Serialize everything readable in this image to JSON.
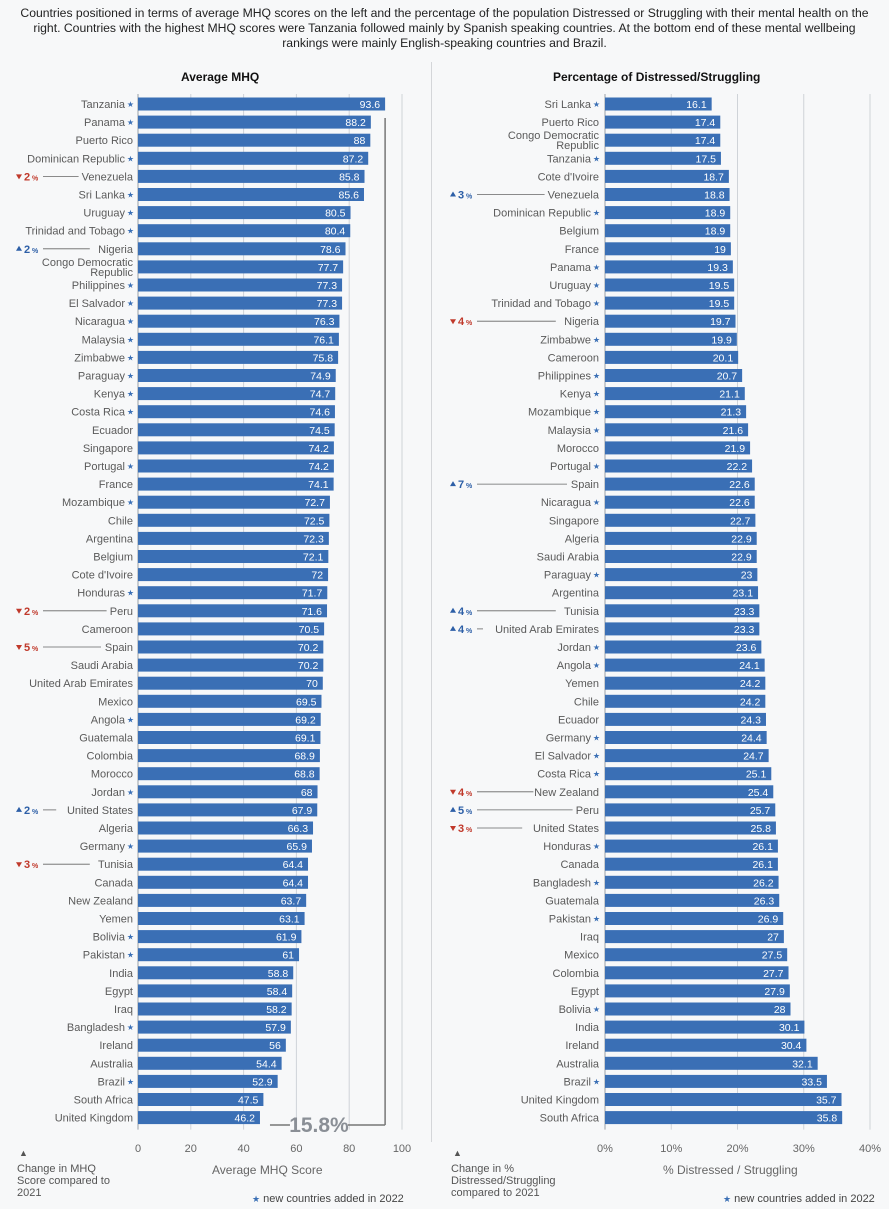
{
  "intro": "Countries positioned in terms of average MHQ scores on the left and the percentage of the population Distressed or Struggling with their mental health on the right.  Countries with the highest MHQ scores were Tanzania followed mainly by Spanish speaking countries. At the bottom end of these mental wellbeing rankings were mainly English-speaking countries and Brazil.",
  "colors": {
    "bar": "#3a6fb5",
    "up": "#2d5fa7",
    "down": "#c0392b",
    "grid": "#cfd3d8"
  },
  "footnotes": {
    "triangle": "▲",
    "left_change_note": "Change in MHQ Score compared to 2021",
    "right_change_note": "Change in % Distressed/Struggling compared to 2021",
    "new_countries": "new countries added in 2022",
    "star": "★"
  },
  "chart_data": [
    {
      "type": "bar",
      "orientation": "horizontal",
      "title": "Average MHQ",
      "xlabel": "Average MHQ Score",
      "xlim": [
        0,
        100
      ],
      "xticks": [
        "0",
        "20",
        "40",
        "60",
        "80",
        "100"
      ],
      "gap_annotation": "15.8%",
      "rows": [
        {
          "name": "Tanzania",
          "value": 93.6,
          "new": true
        },
        {
          "name": "Panama",
          "value": 88.2,
          "new": true
        },
        {
          "name": "Puerto Rico",
          "value": 88
        },
        {
          "name": "Dominican Republic",
          "value": 87.2,
          "new": true
        },
        {
          "name": "Venezuela",
          "value": 85.8,
          "change": "2",
          "dir": "down"
        },
        {
          "name": "Sri Lanka",
          "value": 85.6,
          "new": true
        },
        {
          "name": "Uruguay",
          "value": 80.5,
          "new": true
        },
        {
          "name": "Trinidad and Tobago",
          "value": 80.4,
          "new": true
        },
        {
          "name": "Nigeria",
          "value": 78.6,
          "change": "2",
          "dir": "up"
        },
        {
          "name": "Congo Democratic Republic",
          "value": 77.7
        },
        {
          "name": "Philippines",
          "value": 77.3,
          "new": true
        },
        {
          "name": "El Salvador",
          "value": 77.3,
          "new": true
        },
        {
          "name": "Nicaragua",
          "value": 76.3,
          "new": true
        },
        {
          "name": "Malaysia",
          "value": 76.1,
          "new": true
        },
        {
          "name": "Zimbabwe",
          "value": 75.8,
          "new": true
        },
        {
          "name": "Paraguay",
          "value": 74.9,
          "new": true
        },
        {
          "name": "Kenya",
          "value": 74.7,
          "new": true
        },
        {
          "name": "Costa Rica",
          "value": 74.6,
          "new": true
        },
        {
          "name": "Ecuador",
          "value": 74.5
        },
        {
          "name": "Singapore",
          "value": 74.2
        },
        {
          "name": "Portugal",
          "value": 74.2,
          "new": true
        },
        {
          "name": "France",
          "value": 74.1
        },
        {
          "name": "Mozambique",
          "value": 72.7,
          "new": true
        },
        {
          "name": "Chile",
          "value": 72.5
        },
        {
          "name": "Argentina",
          "value": 72.3
        },
        {
          "name": "Belgium",
          "value": 72.1
        },
        {
          "name": "Cote d'Ivoire",
          "value": 72
        },
        {
          "name": "Honduras",
          "value": 71.7,
          "new": true
        },
        {
          "name": "Peru",
          "value": 71.6,
          "change": "2",
          "dir": "down"
        },
        {
          "name": "Cameroon",
          "value": 70.5
        },
        {
          "name": "Spain",
          "value": 70.2,
          "change": "5",
          "dir": "down"
        },
        {
          "name": "Saudi Arabia",
          "value": 70.2
        },
        {
          "name": "United Arab Emirates",
          "value": 70
        },
        {
          "name": "Mexico",
          "value": 69.5
        },
        {
          "name": "Angola",
          "value": 69.2,
          "new": true
        },
        {
          "name": "Guatemala",
          "value": 69.1
        },
        {
          "name": "Colombia",
          "value": 68.9
        },
        {
          "name": "Morocco",
          "value": 68.8
        },
        {
          "name": "Jordan",
          "value": 68,
          "new": true
        },
        {
          "name": "United States",
          "value": 67.9,
          "change": "2",
          "dir": "up"
        },
        {
          "name": "Algeria",
          "value": 66.3
        },
        {
          "name": "Germany",
          "value": 65.9,
          "new": true
        },
        {
          "name": "Tunisia",
          "value": 64.4,
          "change": "3",
          "dir": "down"
        },
        {
          "name": "Canada",
          "value": 64.4
        },
        {
          "name": "New Zealand",
          "value": 63.7
        },
        {
          "name": "Yemen",
          "value": 63.1
        },
        {
          "name": "Bolivia",
          "value": 61.9,
          "new": true
        },
        {
          "name": "Pakistan",
          "value": 61,
          "new": true
        },
        {
          "name": "India",
          "value": 58.8
        },
        {
          "name": "Egypt",
          "value": 58.4
        },
        {
          "name": "Iraq",
          "value": 58.2
        },
        {
          "name": "Bangladesh",
          "value": 57.9,
          "new": true
        },
        {
          "name": "Ireland",
          "value": 56
        },
        {
          "name": "Australia",
          "value": 54.4
        },
        {
          "name": "Brazil",
          "value": 52.9,
          "new": true
        },
        {
          "name": "South Africa",
          "value": 47.5
        },
        {
          "name": "United Kingdom",
          "value": 46.2
        }
      ]
    },
    {
      "type": "bar",
      "orientation": "horizontal",
      "title": "Percentage of Distressed/Struggling",
      "xlabel": "% Distressed / Struggling",
      "xlim": [
        0,
        40
      ],
      "xticks": [
        "0%",
        "10%",
        "20%",
        "30%",
        "40%"
      ],
      "rows": [
        {
          "name": "Sri Lanka",
          "value": 16.1,
          "new": true
        },
        {
          "name": "Puerto Rico",
          "value": 17.4
        },
        {
          "name": "Congo Democratic Republic",
          "value": 17.4
        },
        {
          "name": "Tanzania",
          "value": 17.5,
          "new": true
        },
        {
          "name": "Cote d'Ivoire",
          "value": 18.7
        },
        {
          "name": "Venezuela",
          "value": 18.8,
          "change": "3",
          "dir": "up"
        },
        {
          "name": "Dominican Republic",
          "value": 18.9,
          "new": true
        },
        {
          "name": "Belgium",
          "value": 18.9
        },
        {
          "name": "France",
          "value": 19
        },
        {
          "name": "Panama",
          "value": 19.3,
          "new": true
        },
        {
          "name": "Uruguay",
          "value": 19.5,
          "new": true
        },
        {
          "name": "Trinidad and Tobago",
          "value": 19.5,
          "new": true
        },
        {
          "name": "Nigeria",
          "value": 19.7,
          "change": "4",
          "dir": "down"
        },
        {
          "name": "Zimbabwe",
          "value": 19.9,
          "new": true
        },
        {
          "name": "Cameroon",
          "value": 20.1
        },
        {
          "name": "Philippines",
          "value": 20.7,
          "new": true
        },
        {
          "name": "Kenya",
          "value": 21.1,
          "new": true
        },
        {
          "name": "Mozambique",
          "value": 21.3,
          "new": true
        },
        {
          "name": "Malaysia",
          "value": 21.6,
          "new": true
        },
        {
          "name": "Morocco",
          "value": 21.9
        },
        {
          "name": "Portugal",
          "value": 22.2,
          "new": true
        },
        {
          "name": "Spain",
          "value": 22.6,
          "change": "7",
          "dir": "up"
        },
        {
          "name": "Nicaragua",
          "value": 22.6,
          "new": true
        },
        {
          "name": "Singapore",
          "value": 22.7
        },
        {
          "name": "Algeria",
          "value": 22.9
        },
        {
          "name": "Saudi Arabia",
          "value": 22.9
        },
        {
          "name": "Paraguay",
          "value": 23,
          "new": true
        },
        {
          "name": "Argentina",
          "value": 23.1
        },
        {
          "name": "Tunisia",
          "value": 23.3,
          "change": "4",
          "dir": "up"
        },
        {
          "name": "United Arab Emirates",
          "value": 23.3,
          "change": "4",
          "dir": "up"
        },
        {
          "name": "Jordan",
          "value": 23.6,
          "new": true
        },
        {
          "name": "Angola",
          "value": 24.1,
          "new": true
        },
        {
          "name": "Yemen",
          "value": 24.2
        },
        {
          "name": "Chile",
          "value": 24.2
        },
        {
          "name": "Ecuador",
          "value": 24.3
        },
        {
          "name": "Germany",
          "value": 24.4,
          "new": true
        },
        {
          "name": "El Salvador",
          "value": 24.7,
          "new": true
        },
        {
          "name": "Costa Rica",
          "value": 25.1,
          "new": true
        },
        {
          "name": "New Zealand",
          "value": 25.4,
          "change": "4",
          "dir": "down"
        },
        {
          "name": "Peru",
          "value": 25.7,
          "change": "5",
          "dir": "up"
        },
        {
          "name": "United States",
          "value": 25.8,
          "change": "3",
          "dir": "down"
        },
        {
          "name": "Honduras",
          "value": 26.1,
          "new": true
        },
        {
          "name": "Canada",
          "value": 26.1
        },
        {
          "name": "Bangladesh",
          "value": 26.2,
          "new": true
        },
        {
          "name": "Guatemala",
          "value": 26.3
        },
        {
          "name": "Pakistan",
          "value": 26.9,
          "new": true
        },
        {
          "name": "Iraq",
          "value": 27
        },
        {
          "name": "Mexico",
          "value": 27.5
        },
        {
          "name": "Colombia",
          "value": 27.7
        },
        {
          "name": "Egypt",
          "value": 27.9
        },
        {
          "name": "Bolivia",
          "value": 28,
          "new": true
        },
        {
          "name": "India",
          "value": 30.1
        },
        {
          "name": "Ireland",
          "value": 30.4
        },
        {
          "name": "Australia",
          "value": 32.1
        },
        {
          "name": "Brazil",
          "value": 33.5,
          "new": true
        },
        {
          "name": "United Kingdom",
          "value": 35.7
        },
        {
          "name": "South Africa",
          "value": 35.8
        }
      ]
    }
  ]
}
